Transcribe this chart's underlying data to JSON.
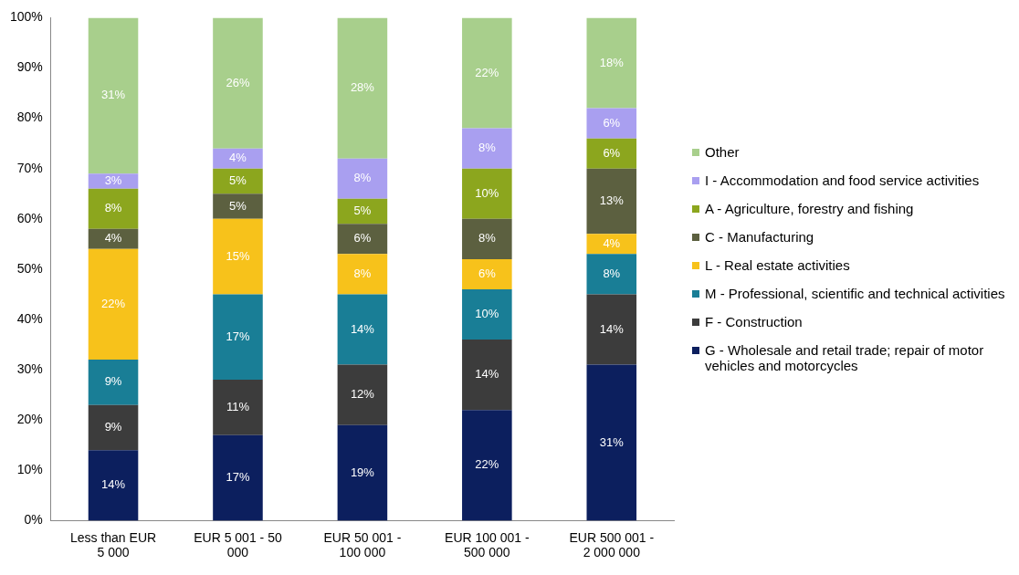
{
  "chart_data": {
    "type": "bar",
    "stacked": true,
    "legend": "right",
    "categories": [
      "Less than EUR 5 000",
      "EUR 5 001 - 50 000",
      "EUR 50 001 - 100 000",
      "EUR 100 001 - 500 000",
      "EUR 500 001 - 2 000 000"
    ],
    "ylim": [
      0,
      100
    ],
    "yticks": [
      {
        "value": 0,
        "label": "0%"
      },
      {
        "value": 10,
        "label": "10%"
      },
      {
        "value": 20,
        "label": "20%"
      },
      {
        "value": 30,
        "label": "30%"
      },
      {
        "value": 40,
        "label": "40%"
      },
      {
        "value": 50,
        "label": "50%"
      },
      {
        "value": 60,
        "label": "60%"
      },
      {
        "value": 70,
        "label": "70%"
      },
      {
        "value": 80,
        "label": "80%"
      },
      {
        "value": 90,
        "label": "90%"
      },
      {
        "value": 100,
        "label": "100%"
      }
    ],
    "series": [
      {
        "name": "G - Wholesale and retail trade; repair of motor vehicles and motorcycles",
        "color": "#0c1f5e",
        "values": [
          14,
          17,
          19,
          22,
          31
        ],
        "value_labels": [
          "14%",
          "17%",
          "19%",
          "22%",
          "31%"
        ]
      },
      {
        "name": "F - Construction",
        "color": "#3c3c3c",
        "values": [
          9,
          11,
          12,
          14,
          14
        ],
        "value_labels": [
          "9%",
          "11%",
          "12%",
          "14%",
          "14%"
        ]
      },
      {
        "name": "M - Professional, scientific and technical activities",
        "color": "#197e96",
        "values": [
          9,
          17,
          14,
          10,
          8
        ],
        "value_labels": [
          "9%",
          "17%",
          "14%",
          "10%",
          "8%"
        ]
      },
      {
        "name": "L - Real estate activities",
        "color": "#f7c21b",
        "values": [
          22,
          15,
          8,
          6,
          4
        ],
        "value_labels": [
          "22%",
          "15%",
          "8%",
          "6%",
          "4%"
        ]
      },
      {
        "name": "C - Manufacturing",
        "color": "#5c6040",
        "values": [
          4,
          5,
          6,
          8,
          13
        ],
        "value_labels": [
          "4%",
          "5%",
          "6%",
          "8%",
          "13%"
        ]
      },
      {
        "name": "A - Agriculture, forestry and fishing",
        "color": "#8ca61e",
        "values": [
          8,
          5,
          5,
          10,
          6
        ],
        "value_labels": [
          "8%",
          "5%",
          "5%",
          "10%",
          "6%"
        ]
      },
      {
        "name": "I - Accommodation and food service activities",
        "color": "#a99ff0",
        "values": [
          3,
          4,
          8,
          8,
          6
        ],
        "value_labels": [
          "3%",
          "4%",
          "8%",
          "8%",
          "6%"
        ]
      },
      {
        "name": "Other",
        "color": "#a8cf8c",
        "values": [
          31,
          26,
          28,
          22,
          18
        ],
        "value_labels": [
          "31%",
          "26%",
          "28%",
          "22%",
          "18%"
        ]
      }
    ]
  }
}
